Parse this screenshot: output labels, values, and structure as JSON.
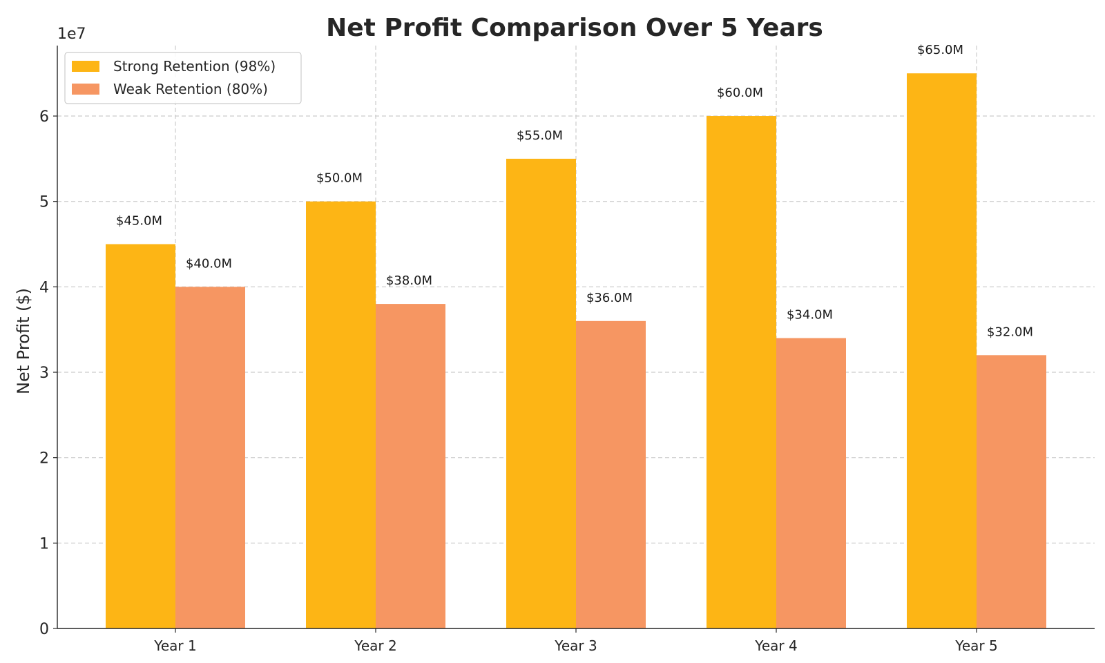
{
  "chart_data": {
    "type": "bar",
    "title": "Net Profit Comparison Over 5 Years",
    "xlabel": "",
    "ylabel": "Net Profit ($)",
    "y_offset_label": "1e7",
    "categories": [
      "Year 1",
      "Year 2",
      "Year 3",
      "Year 4",
      "Year 5"
    ],
    "series": [
      {
        "name": "Strong Retention (98%)",
        "color": "#FDB515",
        "values": [
          45000000,
          50000000,
          55000000,
          60000000,
          65000000
        ],
        "labels": [
          "$45.0M",
          "$50.0M",
          "$55.0M",
          "$60.0M",
          "$65.0M"
        ]
      },
      {
        "name": "Weak Retention (80%)",
        "color": "#F69662",
        "values": [
          40000000,
          38000000,
          36000000,
          34000000,
          32000000
        ],
        "labels": [
          "$40.0M",
          "$38.0M",
          "$36.0M",
          "$34.0M",
          "$32.0M"
        ]
      }
    ],
    "ylim": [
      0,
      68250000
    ],
    "yticks": [
      0,
      10000000,
      20000000,
      30000000,
      40000000,
      50000000,
      60000000
    ],
    "ytick_labels": [
      "0",
      "1",
      "2",
      "3",
      "4",
      "5",
      "6"
    ],
    "grid": true,
    "legend_position": "top-left"
  }
}
